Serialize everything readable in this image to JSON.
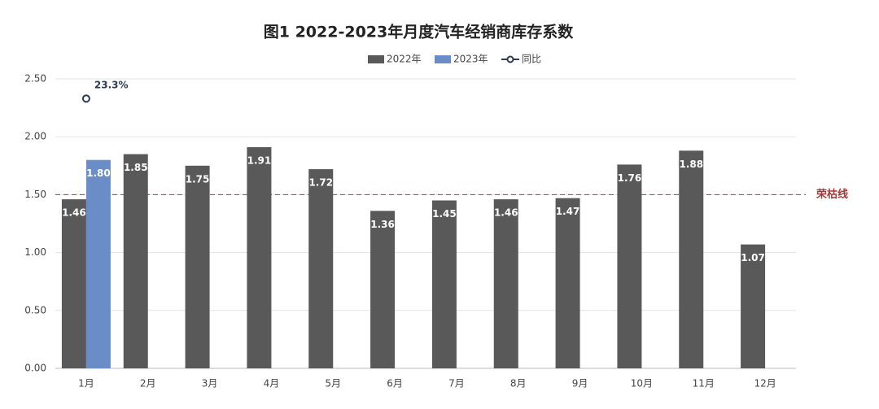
{
  "chart_data": {
    "type": "bar",
    "title": "图1  2022-2023年月度汽车经销商库存系数",
    "categories": [
      "1月",
      "2月",
      "3月",
      "4月",
      "5月",
      "6月",
      "7月",
      "8月",
      "9月",
      "10月",
      "11月",
      "12月"
    ],
    "series": [
      {
        "name": "2022年",
        "color": "#595959",
        "values": [
          1.46,
          1.85,
          1.75,
          1.91,
          1.72,
          1.36,
          1.45,
          1.46,
          1.47,
          1.76,
          1.88,
          1.07
        ],
        "value_labels": [
          "1.46",
          "1.85",
          "1.75",
          "1.91",
          "1.72",
          "1.36",
          "1.45",
          "1.46",
          "1.47",
          "1.76",
          "1.88",
          "1.07"
        ]
      },
      {
        "name": "2023年",
        "color": "#6a8cc7",
        "values": [
          1.8,
          null,
          null,
          null,
          null,
          null,
          null,
          null,
          null,
          null,
          null,
          null
        ],
        "value_labels": [
          "1.80",
          null,
          null,
          null,
          null,
          null,
          null,
          null,
          null,
          null,
          null,
          null
        ]
      },
      {
        "name": "同比",
        "type": "line",
        "axis": "y2",
        "color": "#2b3a55",
        "values": [
          23.3,
          null,
          null,
          null,
          null,
          null,
          null,
          null,
          null,
          null,
          null,
          null
        ],
        "value_labels": [
          "23.3%",
          null,
          null,
          null,
          null,
          null,
          null,
          null,
          null,
          null,
          null,
          null
        ]
      }
    ],
    "ylim": [
      0,
      2.5
    ],
    "yticks": [
      {
        "value": 0,
        "label": "0.00"
      },
      {
        "value": 0.5,
        "label": "0.50"
      },
      {
        "value": 1,
        "label": "1.00"
      },
      {
        "value": 1.5,
        "label": "1.50"
      },
      {
        "value": 2,
        "label": "2.00"
      },
      {
        "value": 2.5,
        "label": "2.50"
      }
    ],
    "y2lim": [
      0,
      25
    ],
    "grid": true,
    "legend": "top",
    "reference_line": {
      "value": 1.5,
      "label": "荣枯线",
      "color": "#a33a3a"
    }
  }
}
